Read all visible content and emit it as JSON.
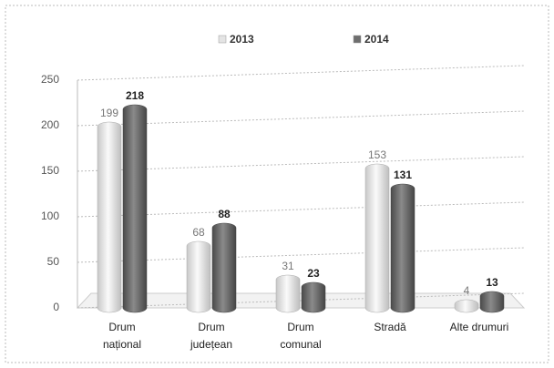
{
  "chart_data": {
    "type": "bar",
    "categories": [
      "Drum\nnațional",
      "Drum\njudețean",
      "Drum\ncomunal",
      "Stradă",
      "Alte drumuri"
    ],
    "series": [
      {
        "name": "2013",
        "color": "#e4e4e4",
        "values": [
          199,
          68,
          31,
          153,
          4
        ]
      },
      {
        "name": "2014",
        "color": "#6e6e6e",
        "values": [
          218,
          88,
          23,
          131,
          13
        ]
      }
    ],
    "ylim": [
      0,
      250
    ],
    "yticks": [
      0,
      50,
      100,
      150,
      200,
      250
    ],
    "grid": true,
    "legend": "top"
  }
}
